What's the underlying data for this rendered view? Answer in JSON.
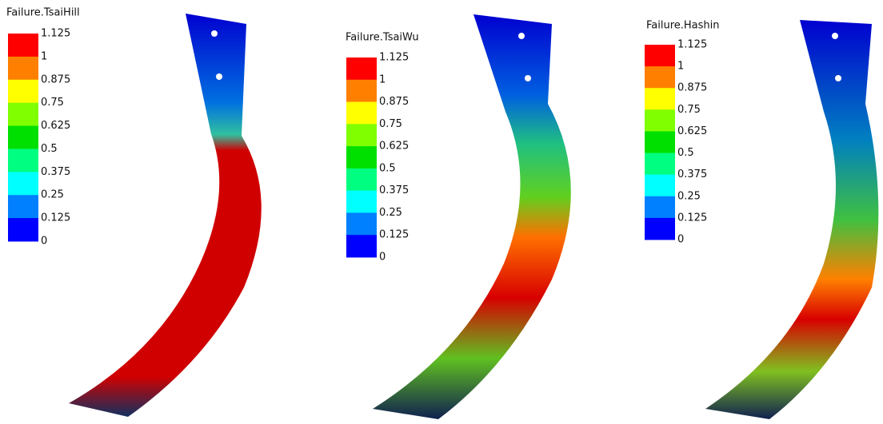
{
  "panels": [
    {
      "title": "Failure.TsaiHill",
      "labels": [
        "1.125",
        "1",
        "0.875",
        "0.75",
        "0.625",
        "0.5",
        "0.375",
        "0.25",
        "0.125",
        "0"
      ]
    },
    {
      "title": "Failure.TsaiWu",
      "labels": [
        "1.125",
        "1",
        "0.875",
        "0.75",
        "0.625",
        "0.5",
        "0.375",
        "0.25",
        "0.125",
        "0"
      ]
    },
    {
      "title": "Failure.Hashin",
      "labels": [
        "1.125",
        "1",
        "0.875",
        "0.75",
        "0.625",
        "0.5",
        "0.375",
        "0.25",
        "0.125",
        "0"
      ]
    }
  ],
  "band_colors": [
    "#ff0000",
    "#ff8000",
    "#ffff00",
    "#80ff00",
    "#00e000",
    "#00ff80",
    "#00ffff",
    "#0080ff",
    "#0000ff"
  ]
}
